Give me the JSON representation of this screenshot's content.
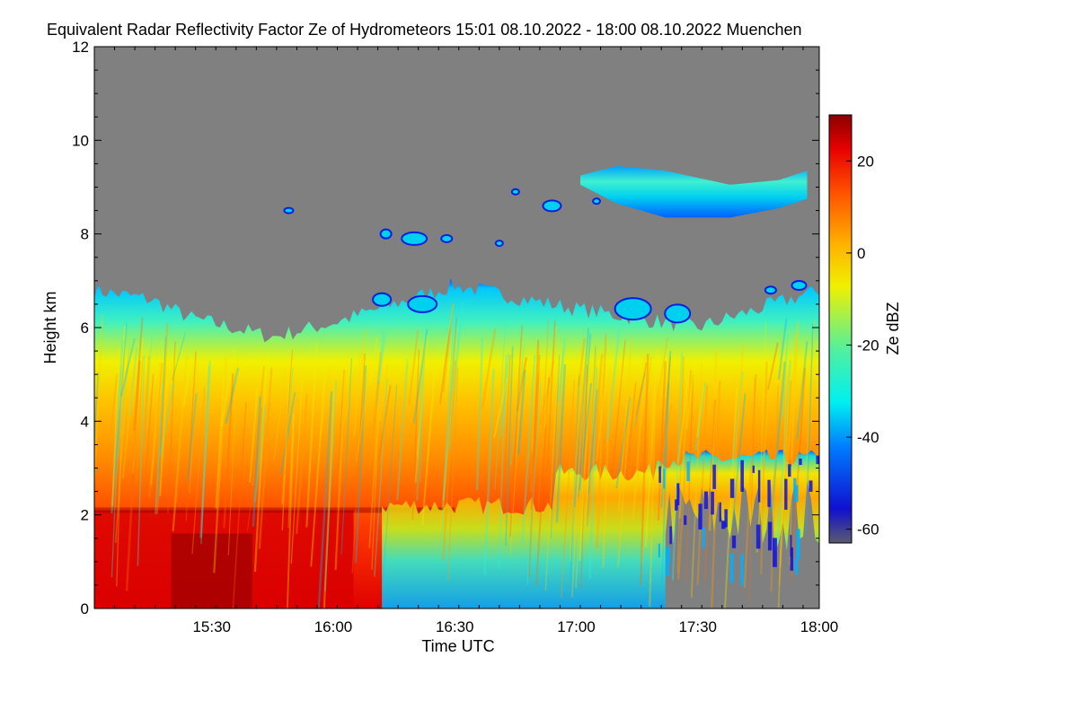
{
  "chart_data": {
    "type": "heatmap",
    "title": "Equivalent Radar Reflectivity Factor Ze of Hydrometeors",
    "time_range": "15:01 08.10.2022 - 18:00 08.10.2022",
    "location": "Muenchen",
    "xlabel": "Time UTC",
    "ylabel": "Height km",
    "x_ticks": [
      "15:30",
      "16:00",
      "16:30",
      "17:00",
      "17:30",
      "18:00"
    ],
    "y_ticks": [
      "0",
      "2",
      "4",
      "6",
      "8",
      "10",
      "12"
    ],
    "xlim": [
      "15:01",
      "18:00"
    ],
    "ylim": [
      0,
      12
    ],
    "colorbar": {
      "label": "Ze dBZ",
      "ticks": [
        "20",
        "0",
        "-20",
        "-40",
        "-60"
      ],
      "range": [
        -63,
        30
      ],
      "colormap": [
        "#5a5a6e",
        "#1010d0",
        "#0078ff",
        "#00f0f0",
        "#50f0a0",
        "#f0f000",
        "#ffb000",
        "#ff5000",
        "#e80000",
        "#8a0000"
      ]
    },
    "background_color": "#808080",
    "cloud_top_km": [
      {
        "time": "15:01",
        "height": 6.8
      },
      {
        "time": "15:15",
        "height": 6.6
      },
      {
        "time": "15:25",
        "height": 6.2
      },
      {
        "time": "15:45",
        "height": 5.8
      },
      {
        "time": "16:00",
        "height": 6.1
      },
      {
        "time": "16:30",
        "height": 6.9
      },
      {
        "time": "17:00",
        "height": 6.4
      },
      {
        "time": "17:30",
        "height": 6.0
      },
      {
        "time": "18:00",
        "height": 6.8
      }
    ],
    "features": [
      {
        "name": "melting layer",
        "height_km": 2.1
      },
      {
        "name": "upper cirrus layer",
        "time_from": "17:00",
        "time_to": "18:00",
        "height_km": [
          8.5,
          9.4
        ]
      }
    ]
  }
}
